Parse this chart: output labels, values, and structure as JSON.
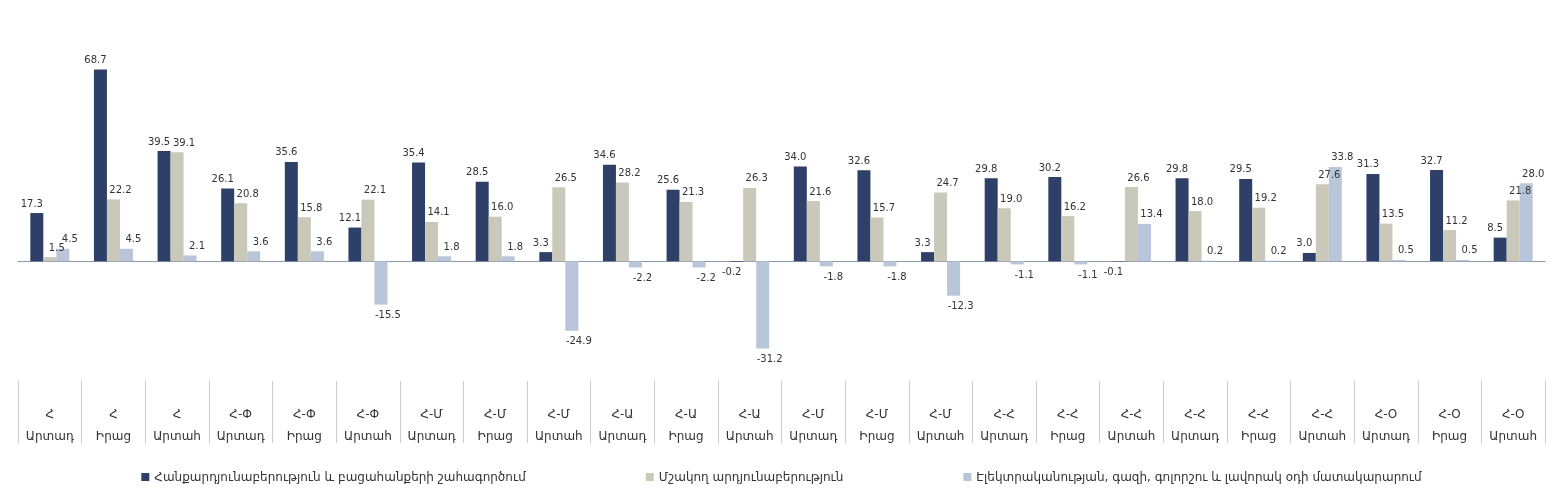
{
  "chart_data": {
    "type": "bar",
    "categories": [
      "Հ\nԱրտադ",
      "Հ\nԻրաց",
      "Հ\nԱրտահ",
      "Հ-Փ\nԱրտադ",
      "Հ-Փ\nԻրաց",
      "Հ-Փ\nԱրտահ",
      "Հ-Մ\nԱրտադ",
      "Հ-Մ\nԻրաց",
      "Հ-Մ\nԱրտահ",
      "Հ-Ա\nԱրտադ",
      "Հ-Ա\nԻրաց",
      "Հ-Ա\nԱրտահ",
      "Հ-Մ\nԱրտադ",
      "Հ-Մ\nԻրաց",
      "Հ-Մ\nԱրտահ",
      "Հ-Հ\nԱրտադ",
      "Հ-Հ\nԻրաց",
      "Հ-Հ\nԱրտահ",
      "Հ-Հ\nԱրտադ",
      "Հ-Հ\nԻրաց",
      "Հ-Հ\nԱրտահ",
      "Հ-Օ\nԱրտադ",
      "Հ-Օ\nԻրաց",
      "Հ-Օ\nԱրտահ"
    ],
    "series": [
      {
        "name": "Հանքարդյունաբերություն և բացահանքերի շահագործում",
        "color": "#2e4068",
        "values": [
          17.3,
          68.7,
          39.5,
          26.1,
          35.6,
          12.1,
          35.4,
          28.5,
          3.3,
          34.6,
          25.6,
          -0.2,
          34.0,
          32.6,
          3.3,
          29.8,
          30.2,
          -0.1,
          29.8,
          29.5,
          3.0,
          31.3,
          32.7,
          8.5
        ],
        "value_labels": [
          "17.3",
          "68.7",
          "39.5",
          "26.1",
          "35.6",
          "12.1",
          "35.4",
          "28.5",
          "3.3",
          "34.6",
          "25.6",
          "-0.2",
          "34.0",
          "32.6",
          "3.3",
          "29.8",
          "30.2",
          "-0.1",
          "29.8",
          "29.5",
          "3.0",
          "31.3",
          "32.7",
          "8.5"
        ]
      },
      {
        "name": "Մշակող արդյունաբերություն",
        "color": "#c9c8b9",
        "values": [
          1.5,
          22.2,
          39.1,
          20.8,
          15.8,
          22.1,
          14.1,
          16.0,
          26.5,
          28.2,
          21.3,
          26.3,
          21.6,
          15.7,
          24.7,
          19.0,
          16.2,
          26.6,
          18.0,
          19.2,
          27.6,
          13.5,
          11.2,
          21.8
        ],
        "value_labels": [
          "1.5",
          "22.2",
          "39.1",
          "20.8",
          "15.8",
          "22.1",
          "14.1",
          "16.0",
          "26.5",
          "28.2",
          "21.3",
          "26.3",
          "21.6",
          "15.7",
          "24.7",
          "19.0",
          "16.2",
          "26.6",
          "18.0",
          "19.2",
          "27.6",
          "13.5",
          "11.2",
          "21.8"
        ]
      },
      {
        "name": "Էլեկտրականության, գազի, գոլորշու և լավորակ օդի մատակարարում",
        "color": "#b9c5d9",
        "values": [
          4.5,
          4.5,
          2.1,
          3.6,
          3.6,
          -15.5,
          1.8,
          1.8,
          -24.9,
          -2.2,
          -2.2,
          -31.2,
          -1.8,
          -1.8,
          -12.3,
          -1.1,
          -1.1,
          13.4,
          0.2,
          0.2,
          33.8,
          0.5,
          0.5,
          28.0
        ],
        "value_labels": [
          "4.5",
          "4.5",
          "2.1",
          "3.6",
          "3.6",
          "-15.5",
          "1.8",
          "1.8",
          "-24.9",
          "-2.2",
          "-2.2",
          "-31.2",
          "-1.8",
          "-1.8",
          "-12.3",
          "-1.1",
          "-1.1",
          "13.4",
          "0.2",
          "0.2",
          "33.8",
          "0.5",
          "0.5",
          "28.0"
        ]
      }
    ],
    "legend": "bottom",
    "grid": false
  }
}
